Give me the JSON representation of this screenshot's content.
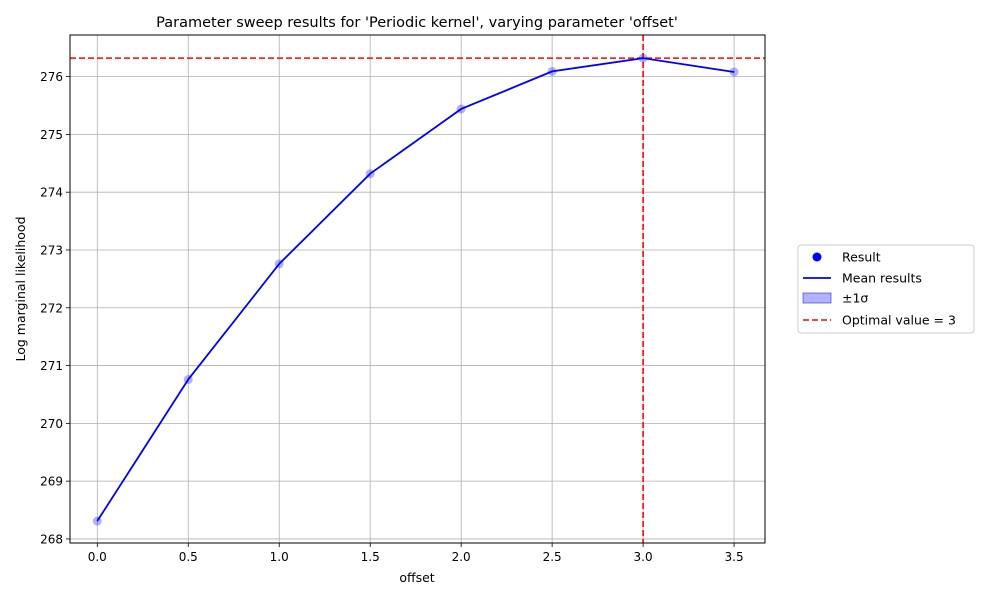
{
  "chart_data": {
    "type": "line",
    "title": "Parameter sweep results for 'Periodic kernel', varying parameter 'offset'",
    "xlabel": "offset",
    "ylabel": "Log marginal likelihood",
    "xlim": [
      -0.15,
      3.67
    ],
    "ylim": [
      267.93,
      276.72
    ],
    "xticks": [
      0.0,
      0.5,
      1.0,
      1.5,
      2.0,
      2.5,
      3.0,
      3.5
    ],
    "xtick_labels": [
      "0.0",
      "0.5",
      "1.0",
      "1.5",
      "2.0",
      "2.5",
      "3.0",
      "3.5"
    ],
    "yticks": [
      268,
      269,
      270,
      271,
      272,
      273,
      274,
      275,
      276
    ],
    "ytick_labels": [
      "268",
      "269",
      "270",
      "271",
      "272",
      "273",
      "274",
      "275",
      "276"
    ],
    "grid": true,
    "legend_position": "right",
    "series": [
      {
        "name": "Result",
        "kind": "scatter",
        "color": "#0000ff",
        "x": [
          0.0,
          0.5,
          1.0,
          1.5,
          2.0,
          2.5,
          3.0,
          3.5
        ],
        "y": [
          268.31,
          270.76,
          272.76,
          274.32,
          275.44,
          276.09,
          276.32,
          276.08
        ]
      },
      {
        "name": "Mean results",
        "kind": "line",
        "color": "#0000ff",
        "x": [
          0.0,
          0.5,
          1.0,
          1.5,
          2.0,
          2.5,
          3.0,
          3.5
        ],
        "y": [
          268.31,
          270.76,
          272.76,
          274.32,
          275.44,
          276.09,
          276.32,
          276.08
        ]
      },
      {
        "name": "±1σ",
        "kind": "band",
        "color": "#0000ff"
      },
      {
        "name": "Optimal value = 3",
        "kind": "reference",
        "color": "#ff0000",
        "vline_x": 3.0,
        "hline_y": 276.32
      }
    ]
  }
}
